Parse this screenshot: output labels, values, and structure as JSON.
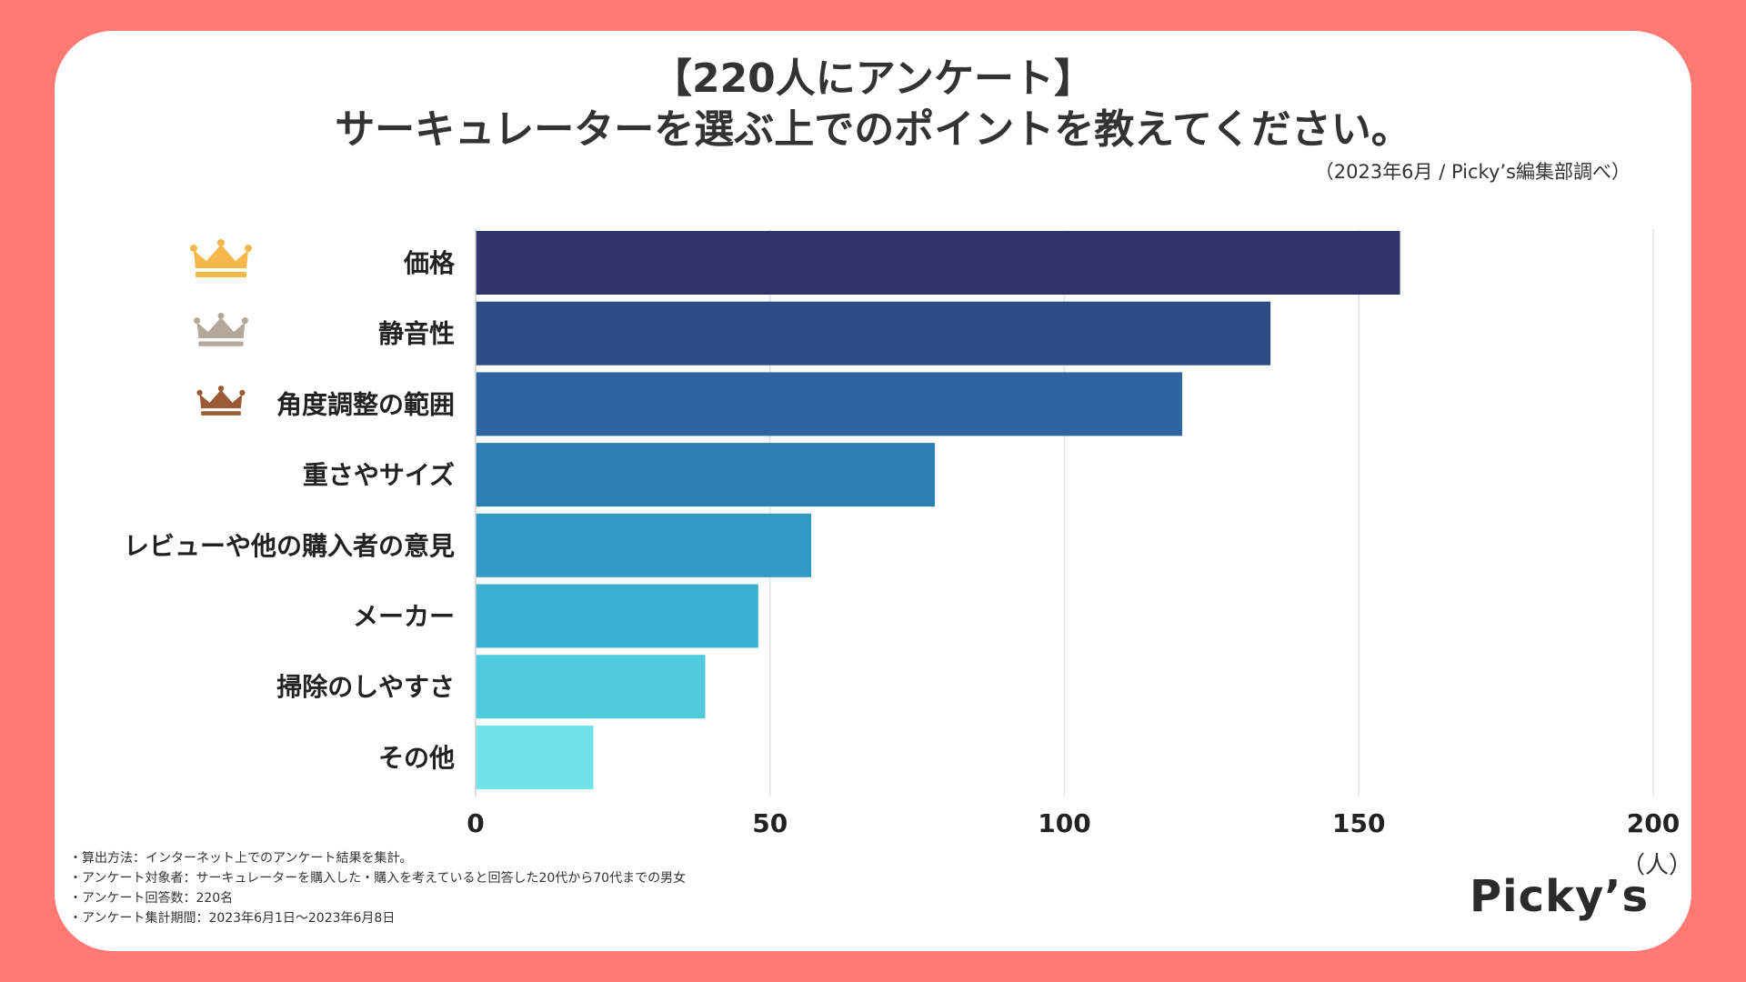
{
  "title_line1": "【220人にアンケート】",
  "title_line2": "サーキュレーターを選ぶ上でのポイントを教えてください。",
  "source": "（2023年6月 / Picky’s編集部調べ）",
  "notes": [
    "・算出方法：インターネット上でのアンケート結果を集計。",
    "・アンケート対象者：サーキュレーターを購入した・購入を考えていると回答した20代から70代までの男女",
    "・アンケート回答数：220名",
    "・アンケート集計期間：2023年6月1日〜2023年6月8日"
  ],
  "logo": "Picky’s",
  "colors": {
    "background": "#ff7a74",
    "gold": "#f7b84b",
    "silver": "#b3a899",
    "bronze": "#9a5a36",
    "bars": [
      "#30346a",
      "#2e4d87",
      "#2e65a0",
      "#2d80b5",
      "#3199c5",
      "#3cb0d3",
      "#50cbde",
      "#6ee3e8"
    ]
  },
  "chart_data": {
    "type": "bar",
    "orientation": "horizontal",
    "categories": [
      "価格",
      "静音性",
      "角度調整の範囲",
      "重さやサイズ",
      "レビューや他の購入者の意見",
      "メーカー",
      "掃除のしやすさ",
      "その他"
    ],
    "values": [
      157,
      135,
      120,
      78,
      57,
      48,
      39,
      20
    ],
    "ranks": [
      "gold",
      "silver",
      "bronze",
      null,
      null,
      null,
      null,
      null
    ],
    "xlim": [
      0,
      200
    ],
    "xticks": [
      0,
      50,
      100,
      150,
      200
    ],
    "unit": "（人）",
    "grid": true
  }
}
